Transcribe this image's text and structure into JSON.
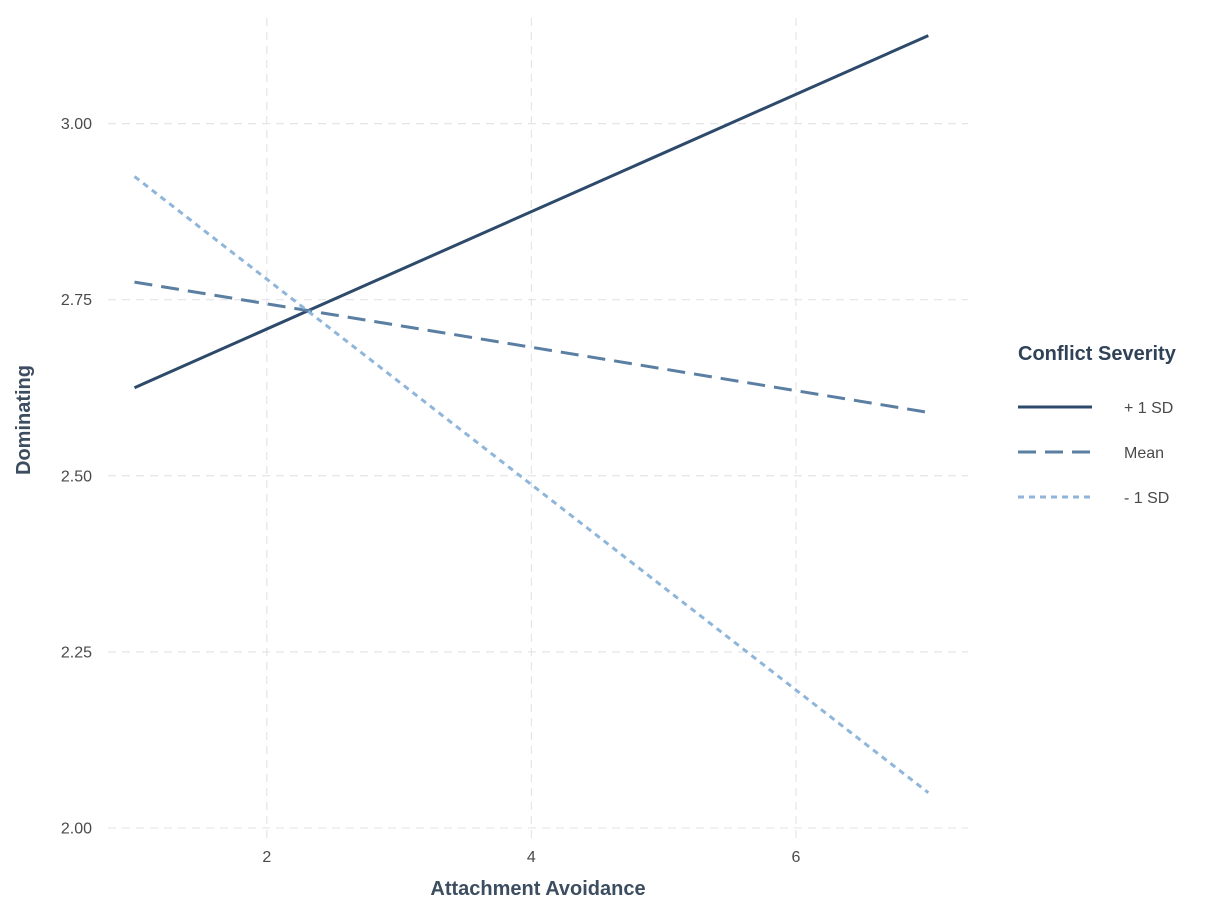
{
  "chart_data": {
    "type": "line",
    "title": "",
    "xlabel": "Attachment Avoidance",
    "ylabel": "Dominating",
    "xlim": [
      0.8,
      7.3
    ],
    "ylim": [
      1.98,
      3.15
    ],
    "x_ticks": [
      {
        "value": 2,
        "label": "2"
      },
      {
        "value": 4,
        "label": "4"
      },
      {
        "value": 6,
        "label": "6"
      }
    ],
    "y_ticks": [
      {
        "value": 2.0,
        "label": "2.00"
      },
      {
        "value": 2.25,
        "label": "2.25"
      },
      {
        "value": 2.5,
        "label": "2.50"
      },
      {
        "value": 2.75,
        "label": "2.75"
      },
      {
        "value": 3.0,
        "label": "3.00"
      }
    ],
    "grid": true,
    "legend": {
      "title": "Conflict Severity",
      "placement": "right"
    },
    "series": [
      {
        "name": "+ 1 SD",
        "color": "#2d4a6b",
        "dash": "solid",
        "x": [
          1,
          7
        ],
        "y": [
          2.625,
          3.125
        ]
      },
      {
        "name": "Mean",
        "color": "#5a7fa3",
        "dash": "dashed",
        "x": [
          1,
          7
        ],
        "y": [
          2.775,
          2.59
        ]
      },
      {
        "name": "- 1 SD",
        "color": "#8fb6da",
        "dash": "dotted",
        "x": [
          1,
          7
        ],
        "y": [
          2.925,
          2.05
        ]
      }
    ]
  }
}
